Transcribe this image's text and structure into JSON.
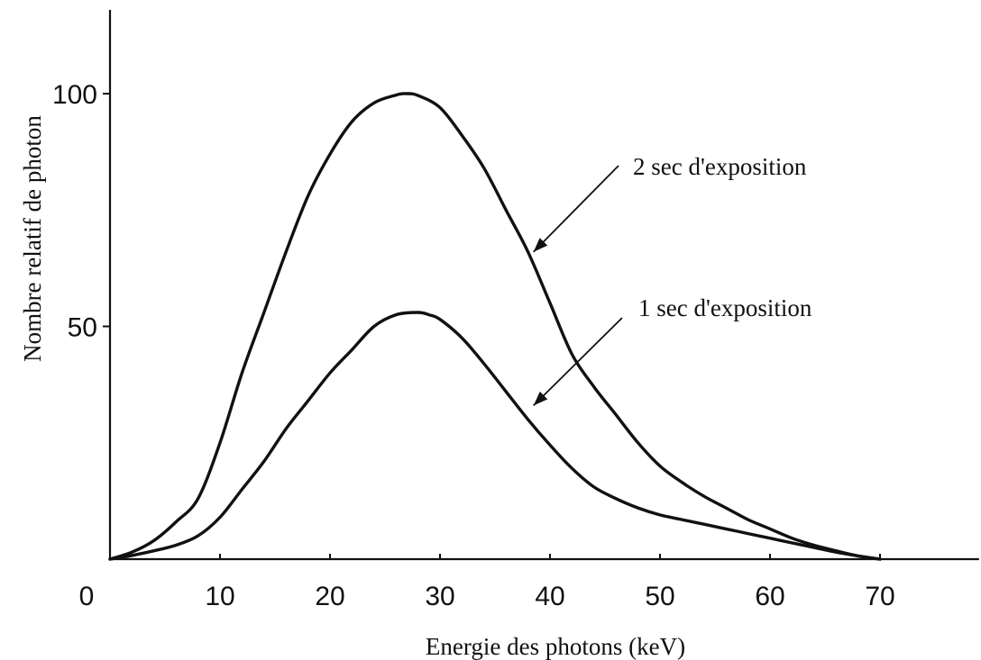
{
  "chart_data": {
    "type": "line",
    "title": "",
    "xlabel": "Energie des photons (keV)",
    "ylabel": "Nombre relatif de photon",
    "xlim": [
      0,
      79
    ],
    "ylim": [
      0,
      118
    ],
    "x_ticks": [
      0,
      10,
      20,
      30,
      40,
      50,
      60,
      70
    ],
    "y_ticks": [
      50,
      100
    ],
    "grid": false,
    "legend": "none",
    "series": [
      {
        "x": [
          0,
          2,
          4,
          6,
          8,
          10,
          12,
          14,
          16,
          18,
          20,
          22,
          24,
          26,
          27,
          28,
          30,
          32,
          34,
          36,
          38,
          40,
          42,
          44,
          46,
          48,
          50,
          52,
          54,
          56,
          58,
          60,
          62,
          64,
          66,
          68,
          70
        ],
        "values": [
          0,
          1.5,
          4,
          8,
          13,
          25,
          40,
          53,
          66,
          78,
          87,
          94,
          98,
          99.7,
          100,
          99.6,
          97,
          91,
          84,
          75,
          66,
          55,
          44,
          37,
          31,
          25,
          20,
          16.5,
          13.5,
          11,
          8.5,
          6.5,
          4.5,
          3,
          1.8,
          0.7,
          0
        ]
      },
      {
        "x": [
          0,
          2,
          4,
          6,
          8,
          10,
          12,
          14,
          16,
          18,
          20,
          22,
          24,
          26,
          28,
          29,
          30,
          32,
          34,
          36,
          38,
          40,
          42,
          44,
          46,
          48,
          50,
          52,
          54,
          56,
          58,
          60,
          62,
          64,
          66,
          68,
          70
        ],
        "values": [
          0,
          0.8,
          1.8,
          3,
          5,
          9,
          15,
          21,
          28,
          34,
          40,
          45,
          50,
          52.5,
          53,
          52.5,
          51.5,
          47.5,
          42,
          36,
          30,
          24.5,
          19.5,
          15.5,
          13,
          11,
          9.5,
          8.5,
          7.5,
          6.5,
          5.5,
          4.5,
          3.5,
          2.5,
          1.5,
          0.7,
          0
        ]
      }
    ],
    "annotations": [
      {
        "text": "2 sec d'exposition",
        "target": [
          38.5,
          66
        ]
      },
      {
        "text": "1 sec d'exposition",
        "target": [
          38.5,
          33
        ]
      }
    ]
  }
}
